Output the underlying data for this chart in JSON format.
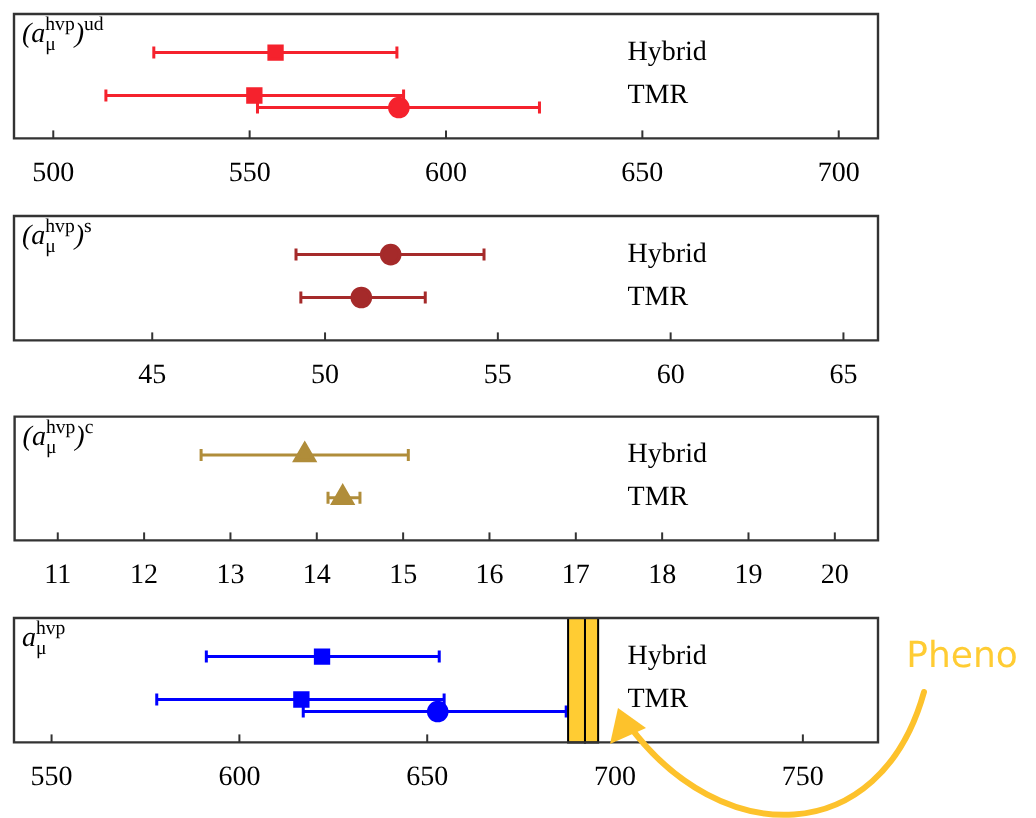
{
  "chart_data": [
    {
      "type": "scatter",
      "title": "(a$_{μ}$$^{hvp}$)$^{ud}$",
      "categories": [
        "Hybrid",
        "TMR"
      ],
      "orientation": "horizontal",
      "xlim": [
        490,
        710
      ],
      "xticks": [
        500,
        550,
        600,
        650,
        700
      ],
      "series": [
        {
          "color": "#f5222d",
          "marker": "square",
          "values": [
            556.6,
            551.2
          ],
          "errors": [
            [
              525.6,
              587.5
            ],
            [
              513.4,
              589.2
            ]
          ]
        },
        {
          "color": "#f5222d",
          "marker": "circle",
          "values": [
            null,
            588
          ],
          "errors": [
            null,
            [
              552,
              623.8
            ]
          ]
        }
      ]
    },
    {
      "type": "scatter",
      "title": "(a$_{μ}$$^{hvp}$)$^{s}$",
      "categories": [
        "Hybrid",
        "TMR"
      ],
      "orientation": "horizontal",
      "xlim": [
        41,
        66
      ],
      "xticks": [
        45,
        50,
        55,
        60,
        65
      ],
      "series": [
        {
          "color": "#a52a2a",
          "marker": "circle",
          "values": [
            51.9,
            51.05
          ],
          "errors": [
            [
              49.16,
              54.6
            ],
            [
              49.3,
              52.9
            ]
          ]
        }
      ]
    },
    {
      "type": "scatter",
      "title": "(a$_{μ}$$^{hvp}$)$^{c}$",
      "categories": [
        "Hybrid",
        "TMR"
      ],
      "orientation": "horizontal",
      "xlim": [
        10.5,
        20.5
      ],
      "xticks": [
        11,
        12,
        13,
        14,
        15,
        16,
        17,
        18,
        19,
        20
      ],
      "series": [
        {
          "color": "#b08d3a",
          "marker": "triangle",
          "values": [
            13.86,
            14.3
          ],
          "errors": [
            [
              12.66,
              15.06
            ],
            [
              14.13,
              14.5
            ]
          ]
        }
      ]
    },
    {
      "type": "scatter",
      "title": "a$_{μ}$$^{hvp}$",
      "categories": [
        "Hybrid",
        "TMR"
      ],
      "orientation": "horizontal",
      "xlim": [
        540,
        770
      ],
      "xticks": [
        550,
        600,
        650,
        700,
        750
      ],
      "series": [
        {
          "color": "#0000ff",
          "marker": "square",
          "values": [
            622,
            616.5
          ],
          "errors": [
            [
              591.2,
              653.2
            ],
            [
              578,
              654.5
            ]
          ]
        },
        {
          "color": "#0000ff",
          "marker": "circle",
          "values": [
            null,
            652.8
          ],
          "errors": [
            null,
            [
              617,
              687
            ]
          ]
        }
      ],
      "bands": [
        {
          "axis": "x",
          "from": 687.5,
          "to": 692,
          "label": "Pheno",
          "color": "#ffcc33"
        },
        {
          "axis": "x",
          "from": 692,
          "to": 695.5,
          "color": "#ffcc33"
        }
      ]
    }
  ]
}
